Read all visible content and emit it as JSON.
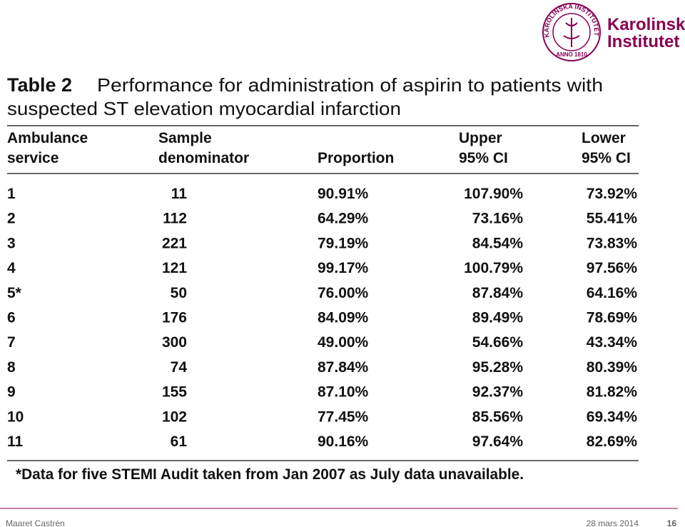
{
  "logo": {
    "seal_text": "KAROLINSKA INSTITUTET",
    "seal_year": "ANNO 1810",
    "name_line1": "Karolinska",
    "name_line2": "Institutet"
  },
  "table": {
    "label": "Table 2",
    "title_lines": [
      "Performance for administration of aspirin to patients with",
      "suspected ST elevation myocardial infarction"
    ],
    "headers": [
      [
        "Ambulance",
        "service"
      ],
      [
        "Sample",
        "denominator"
      ],
      [
        "Proportion"
      ],
      [
        "Upper",
        "95% CI"
      ],
      [
        "Lower",
        "95% CI"
      ]
    ],
    "rows": [
      [
        "1",
        "11",
        "90.91%",
        "107.90%",
        "73.92%"
      ],
      [
        "2",
        "112",
        "64.29%",
        "73.16%",
        "55.41%"
      ],
      [
        "3",
        "221",
        "79.19%",
        "84.54%",
        "73.83%"
      ],
      [
        "4",
        "121",
        "99.17%",
        "100.79%",
        "97.56%"
      ],
      [
        "5*",
        "50",
        "76.00%",
        "87.84%",
        "64.16%"
      ],
      [
        "6",
        "176",
        "84.09%",
        "89.49%",
        "78.69%"
      ],
      [
        "7",
        "300",
        "49.00%",
        "54.66%",
        "43.34%"
      ],
      [
        "8",
        "74",
        "87.84%",
        "95.28%",
        "80.39%"
      ],
      [
        "9",
        "155",
        "87.10%",
        "92.37%",
        "81.82%"
      ],
      [
        "10",
        "102",
        "77.45%",
        "85.56%",
        "69.34%"
      ],
      [
        "11",
        "61",
        "90.16%",
        "97.64%",
        "82.69%"
      ]
    ],
    "footnote": "*Data for five STEMI Audit taken from Jan 2007 as July data unavailable."
  },
  "footer": {
    "author": "Maaret Castrén",
    "date": "28 mars 2014",
    "page": "16"
  }
}
